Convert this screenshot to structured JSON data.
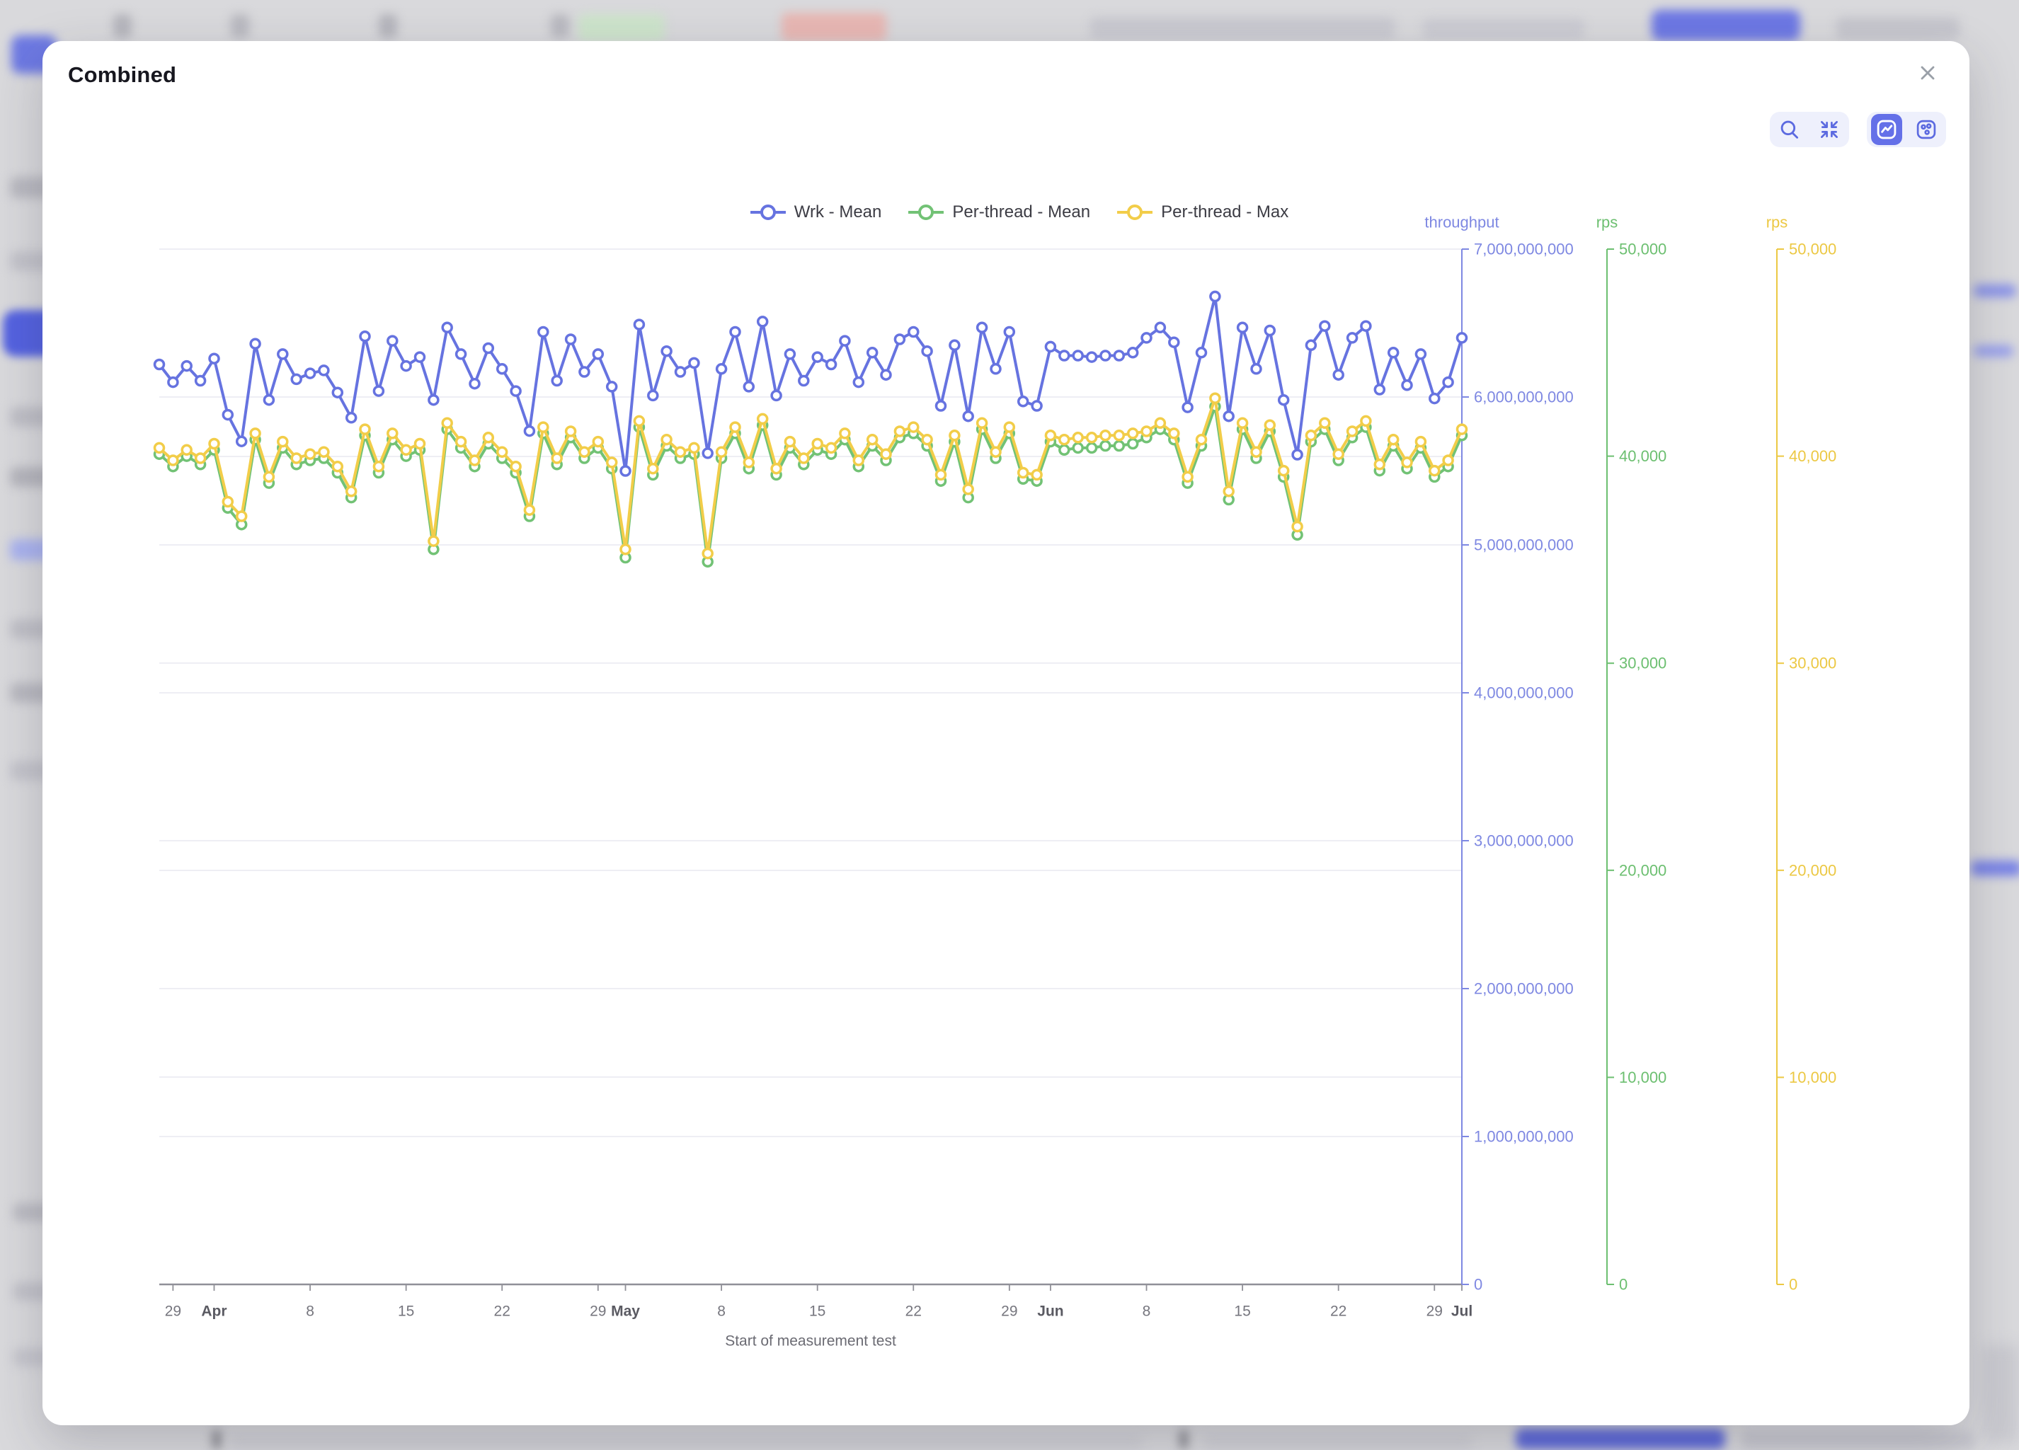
{
  "modal": {
    "title": "Combined"
  },
  "icons": {
    "close": "x-mark",
    "zoom": "magnifier",
    "reset_zoom": "collapse-arrows",
    "line_mode": "trend-line",
    "scatter_mode": "scatter-dots"
  },
  "colors": {
    "accent": "#6470e8",
    "wrk_mean": "#6673e0",
    "per_thread_mean": "#72c275",
    "per_thread_max": "#f2cd49",
    "grid": "#e9e9f1",
    "x_axis_line": "#909098",
    "x_tick_label": "#76767e",
    "x_month_label": "#5a5a62",
    "xlabel_text": "#6b6b73"
  },
  "chart_data": {
    "type": "line",
    "xlabel": "Start of measurement test",
    "grid": true,
    "legend_position": "top-center",
    "x_axis": {
      "total_days": 95,
      "ticks": [
        {
          "label": "29",
          "day": 1
        },
        {
          "label": "Apr",
          "day": 4,
          "bold": true
        },
        {
          "label": "8",
          "day": 11
        },
        {
          "label": "15",
          "day": 18
        },
        {
          "label": "22",
          "day": 25
        },
        {
          "label": "29",
          "day": 32
        },
        {
          "label": "May",
          "day": 34,
          "bold": true
        },
        {
          "label": "8",
          "day": 41
        },
        {
          "label": "15",
          "day": 48
        },
        {
          "label": "22",
          "day": 55
        },
        {
          "label": "29",
          "day": 62
        },
        {
          "label": "Jun",
          "day": 65,
          "bold": true
        },
        {
          "label": "8",
          "day": 72
        },
        {
          "label": "15",
          "day": 79
        },
        {
          "label": "22",
          "day": 86
        },
        {
          "label": "29",
          "day": 93
        },
        {
          "label": "Jul",
          "day": 95,
          "bold": true
        }
      ]
    },
    "y_axes": [
      {
        "name": "throughput",
        "color": "#7e88e2",
        "min": 0,
        "max": 7000000000,
        "tick_step": 1000000000
      },
      {
        "name": "rps",
        "color": "#6cbf70",
        "min": 0,
        "max": 50000,
        "tick_step": 10000
      },
      {
        "name": "rps",
        "color": "#ecc843",
        "min": 0,
        "max": 50000,
        "tick_step": 10000
      }
    ],
    "series": [
      {
        "name": "Wrk - Mean",
        "color": "#6673e0",
        "axis": 0,
        "values": [
          6220000000,
          6100000000,
          6210000000,
          6110000000,
          6260000000,
          5880000000,
          5700000000,
          6360000000,
          5980000000,
          6290000000,
          6120000000,
          6160000000,
          6180000000,
          6030000000,
          5860000000,
          6410000000,
          6040000000,
          6380000000,
          6210000000,
          6270000000,
          5980000000,
          6470000000,
          6290000000,
          6090000000,
          6330000000,
          6190000000,
          6040000000,
          5770000000,
          6440000000,
          6110000000,
          6390000000,
          6170000000,
          6290000000,
          6070000000,
          5500000000,
          6490000000,
          6010000000,
          6310000000,
          6170000000,
          6230000000,
          5620000000,
          6190000000,
          6440000000,
          6070000000,
          6510000000,
          6010000000,
          6290000000,
          6110000000,
          6270000000,
          6220000000,
          6380000000,
          6100000000,
          6300000000,
          6150000000,
          6390000000,
          6440000000,
          6310000000,
          5940000000,
          6350000000,
          5870000000,
          6470000000,
          6190000000,
          6440000000,
          5970000000,
          5940000000,
          6340000000,
          6280000000,
          6280000000,
          6270000000,
          6280000000,
          6280000000,
          6300000000,
          6400000000,
          6470000000,
          6370000000,
          5930000000,
          6300000000,
          6680000000,
          5870000000,
          6470000000,
          6190000000,
          6450000000,
          5980000000,
          5610000000,
          6350000000,
          6480000000,
          6150000000,
          6400000000,
          6480000000,
          6050000000,
          6300000000,
          6080000000,
          6290000000,
          5990000000,
          6100000000,
          6400000000
        ]
      },
      {
        "name": "Per-thread - Mean",
        "color": "#72c275",
        "axis": 1,
        "values": [
          40100,
          39500,
          40000,
          39600,
          40300,
          37500,
          36700,
          40800,
          38700,
          40400,
          39600,
          39800,
          39900,
          39200,
          38000,
          41000,
          39200,
          40800,
          40000,
          40300,
          35500,
          41300,
          40400,
          39500,
          40600,
          39900,
          39200,
          37100,
          41100,
          39600,
          40900,
          39900,
          40400,
          39400,
          35100,
          41400,
          39100,
          40500,
          39900,
          40100,
          34900,
          39900,
          41100,
          39400,
          41500,
          39100,
          40400,
          39600,
          40300,
          40100,
          40800,
          39500,
          40500,
          39800,
          40900,
          41100,
          40500,
          38800,
          40700,
          38000,
          41300,
          39900,
          41100,
          38900,
          38800,
          40700,
          40300,
          40400,
          40400,
          40500,
          40500,
          40600,
          40900,
          41300,
          40800,
          38700,
          40500,
          42400,
          37900,
          41300,
          39900,
          41200,
          39000,
          36200,
          40700,
          41300,
          39800,
          40900,
          41400,
          39300,
          40500,
          39400,
          40400,
          39000,
          39500,
          41000
        ]
      },
      {
        "name": "Per-thread - Max",
        "color": "#f2cd49",
        "axis": 2,
        "values": [
          40400,
          39800,
          40300,
          39900,
          40600,
          37800,
          37100,
          41100,
          39000,
          40700,
          39900,
          40100,
          40200,
          39500,
          38300,
          41300,
          39500,
          41100,
          40300,
          40600,
          35900,
          41600,
          40700,
          39800,
          40900,
          40200,
          39500,
          37400,
          41400,
          39900,
          41200,
          40200,
          40700,
          39700,
          35500,
          41700,
          39400,
          40800,
          40200,
          40400,
          35300,
          40200,
          41400,
          39700,
          41800,
          39400,
          40700,
          39900,
          40600,
          40400,
          41100,
          39800,
          40800,
          40100,
          41200,
          41400,
          40800,
          39100,
          41000,
          38400,
          41600,
          40200,
          41400,
          39200,
          39100,
          41000,
          40800,
          40900,
          40900,
          41000,
          41000,
          41100,
          41200,
          41600,
          41100,
          39000,
          40800,
          42800,
          38300,
          41600,
          40200,
          41500,
          39300,
          36600,
          41000,
          41600,
          40100,
          41200,
          41700,
          39600,
          40800,
          39700,
          40700,
          39300,
          39800,
          41300
        ]
      }
    ]
  }
}
